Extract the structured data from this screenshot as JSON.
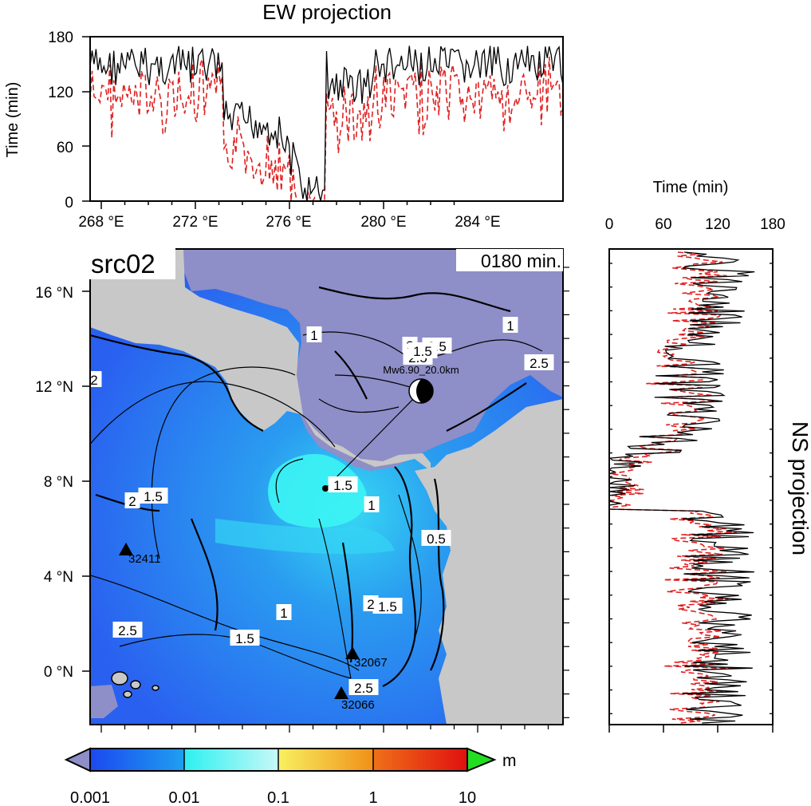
{
  "top_panel": {
    "title": "EW projection",
    "ylabel": "Time (min)",
    "yticks": [
      "0",
      "60",
      "120",
      "180"
    ],
    "xticks": [
      "268 °E",
      "272 °E",
      "276 °E",
      "280 °E",
      "284 °E"
    ]
  },
  "right_panel": {
    "title": "NS projection",
    "xlabel": "Time (min)",
    "xticks": [
      "0",
      "60",
      "120",
      "180"
    ]
  },
  "map": {
    "source_label": "src02",
    "time_label": "0180 min.",
    "lat_ticks": [
      "16 °N",
      "12 °N",
      "8 °N",
      "4 °N",
      "0 °N"
    ],
    "event_label": "Mw6.90_20.0km",
    "stations": [
      {
        "id": "32411"
      },
      {
        "id": "32067"
      },
      {
        "id": "32066"
      }
    ],
    "contour_labels": [
      "1",
      "1.5",
      "2",
      "2.5",
      "1.5",
      "2",
      "1.5",
      "1",
      "1.5",
      "2.5",
      "2",
      "1",
      "2",
      "0.5",
      "1",
      "2.5",
      "0.5",
      "1.5",
      "2.5"
    ],
    "colors": {
      "ocean_deep": "#2a5cf0",
      "ocean_shallow": "#3cf0f0",
      "land": "#c8c8c8",
      "masked": "#8e8ec8"
    }
  },
  "colorbar": {
    "ticks": [
      "0.001",
      "0.01",
      "0.1",
      "1",
      "10"
    ],
    "unit": "m",
    "colors": [
      "#2050f0",
      "#20c0f0",
      "#40f8f8",
      "#f8f070",
      "#f0a020",
      "#e02010"
    ]
  },
  "series_colors": {
    "primary": "#000000",
    "secondary": "#e02020"
  }
}
